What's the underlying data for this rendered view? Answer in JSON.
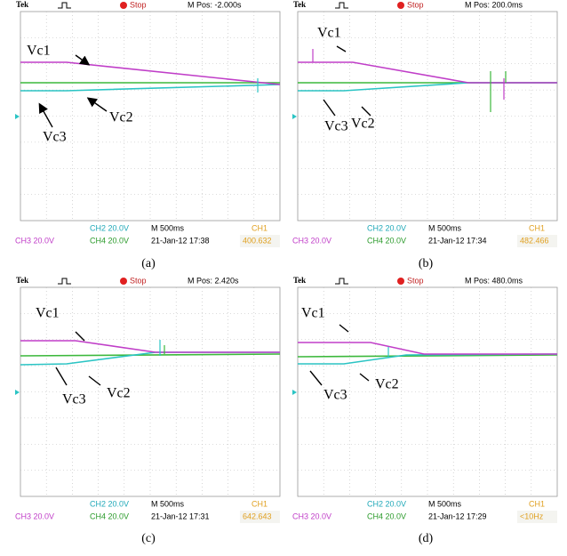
{
  "panels": [
    {
      "header": {
        "brand": "Tek",
        "state": "Stop",
        "position": "M Pos: -2.000s"
      },
      "footer": {
        "ch2": "CH2  20.0V",
        "timebase": "M 500ms",
        "ch1": "CH1",
        "ch3": "CH3  20.0V",
        "ch4": "CH4  20.0V",
        "timestamp": "21-Jan-12 17:38",
        "readout": "400.632"
      },
      "labels": [
        "Vc1",
        "Vc2",
        "Vc3"
      ],
      "caption": "(a)"
    },
    {
      "header": {
        "brand": "Tek",
        "state": "Stop",
        "position": "M Pos: 200.0ms"
      },
      "footer": {
        "ch2": "CH2  20.0V",
        "timebase": "M 500ms",
        "ch1": "CH1",
        "ch3": "CH3  20.0V",
        "ch4": "CH4  20.0V",
        "timestamp": "21-Jan-12 17:34",
        "readout": "482.466"
      },
      "labels": [
        "Vc1",
        "Vc2",
        "Vc3"
      ],
      "caption": "(b)"
    },
    {
      "header": {
        "brand": "Tek",
        "state": "Stop",
        "position": "M Pos: 2.420s"
      },
      "footer": {
        "ch2": "CH2  20.0V",
        "timebase": "M 500ms",
        "ch1": "CH1",
        "ch3": "CH3  20.0V",
        "ch4": "CH4  20.0V",
        "timestamp": "21-Jan-12 17:31",
        "readout": "642.643"
      },
      "labels": [
        "Vc1",
        "Vc2",
        "Vc3"
      ],
      "caption": "(c)"
    },
    {
      "header": {
        "brand": "Tek",
        "state": "Stop",
        "position": "M Pos: 480.0ms"
      },
      "footer": {
        "ch2": "CH2  20.0V",
        "timebase": "M 500ms",
        "ch1": "CH1",
        "ch3": "CH3  20.0V",
        "ch4": "CH4  20.0V",
        "timestamp": "21-Jan-12 17:29",
        "readout": "<10Hz"
      },
      "labels": [
        "Vc1",
        "Vc2",
        "Vc3"
      ],
      "caption": "(d)"
    }
  ]
}
